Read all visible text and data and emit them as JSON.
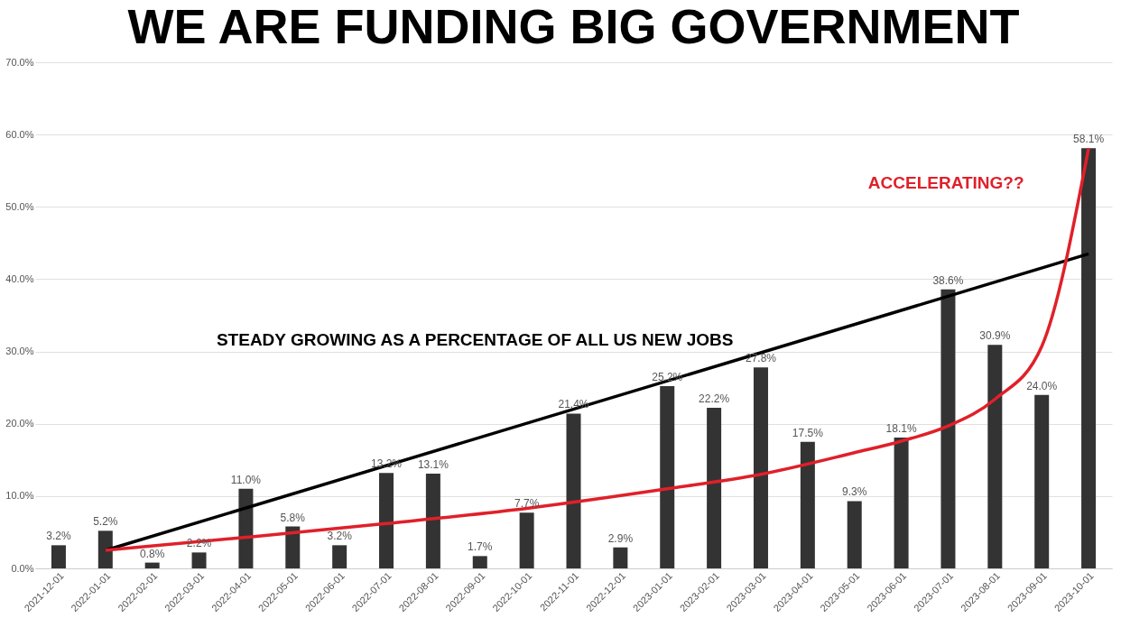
{
  "chart_data": {
    "type": "bar",
    "title": "WE ARE FUNDING BIG GOVERNMENT",
    "categories": [
      "2021-12-01",
      "2022-01-01",
      "2022-02-01",
      "2022-03-01",
      "2022-04-01",
      "2022-05-01",
      "2022-06-01",
      "2022-07-01",
      "2022-08-01",
      "2022-09-01",
      "2022-10-01",
      "2022-11-01",
      "2022-12-01",
      "2023-01-01",
      "2023-02-01",
      "2023-03-01",
      "2023-04-01",
      "2023-05-01",
      "2023-06-01",
      "2023-07-01",
      "2023-08-01",
      "2023-09-01",
      "2023-10-01"
    ],
    "series": [
      {
        "color": "#333333",
        "values": [
          3.2,
          5.2,
          0.8,
          2.2,
          11.0,
          5.8,
          3.2,
          13.2,
          13.1,
          1.7,
          7.7,
          21.4,
          2.9,
          25.2,
          22.2,
          27.8,
          17.5,
          9.3,
          18.1,
          38.6,
          30.9,
          24.0,
          58.1
        ],
        "value_labels": [
          "3.2%",
          "5.2%",
          "0.8%",
          "2.2%",
          "11.0%",
          "5.8%",
          "3.2%",
          "13.2%",
          "13.1%",
          "1.7%",
          "7.7%",
          "21.4%",
          "2.9%",
          "25.2%",
          "22.2%",
          "27.8%",
          "17.5%",
          "9.3%",
          "18.1%",
          "38.6%",
          "30.9%",
          "24.0%",
          "58.1%"
        ]
      },
      {
        "type": "line",
        "color": "#000000",
        "values": [
          null,
          2.5,
          null,
          null,
          null,
          null,
          null,
          null,
          null,
          null,
          null,
          null,
          null,
          null,
          null,
          null,
          null,
          null,
          null,
          null,
          null,
          null,
          43.5
        ]
      },
      {
        "type": "line",
        "color": "#e0202a",
        "values": [
          null,
          2.5,
          null,
          null,
          4.3,
          null,
          null,
          6.2,
          null,
          null,
          8.3,
          null,
          null,
          11.0,
          null,
          13.0,
          null,
          16.0,
          17.6,
          19.7,
          23.4,
          30.7,
          58.1
        ]
      }
    ],
    "ylim": [
      0,
      70
    ],
    "yticks": [
      {
        "value": 0,
        "label": "0.0%"
      },
      {
        "value": 10,
        "label": "10.0%"
      },
      {
        "value": 20,
        "label": "20.0%"
      },
      {
        "value": 30,
        "label": "30.0%"
      },
      {
        "value": 40,
        "label": "40.0%"
      },
      {
        "value": 50,
        "label": "50.0%"
      },
      {
        "value": 60,
        "label": "60.0%"
      },
      {
        "value": 70,
        "label": "70.0%"
      }
    ],
    "grid": "y",
    "annotations": [
      "STEADY GROWING AS A PERCENTAGE OF ALL US NEW JOBS",
      "ACCELERATING??"
    ]
  }
}
